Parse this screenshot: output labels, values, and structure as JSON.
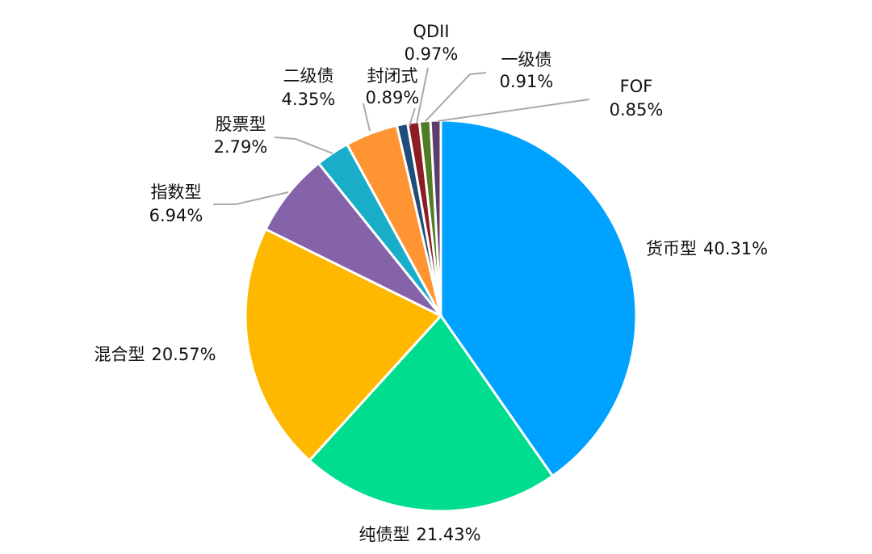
{
  "chart_data": {
    "type": "pie",
    "categories": [
      "货币型",
      "纯债型",
      "混合型",
      "指数型",
      "股票型",
      "二级债",
      "封闭式",
      "QDII",
      "一级债",
      "FOF"
    ],
    "values": [
      40.31,
      21.43,
      20.57,
      6.94,
      2.79,
      4.35,
      0.89,
      0.97,
      0.91,
      0.85
    ],
    "value_labels": [
      "40.31%",
      "21.43%",
      "20.57%",
      "6.94%",
      "2.79%",
      "4.35%",
      "0.89%",
      "0.97%",
      "0.91%",
      "0.85%"
    ],
    "colors": [
      "#00a2ff",
      "#00dd8f",
      "#ffb800",
      "#8563a8",
      "#19adc9",
      "#ff9532",
      "#1f4e7a",
      "#8e1c23",
      "#4f7d25",
      "#5e3c6e"
    ]
  }
}
